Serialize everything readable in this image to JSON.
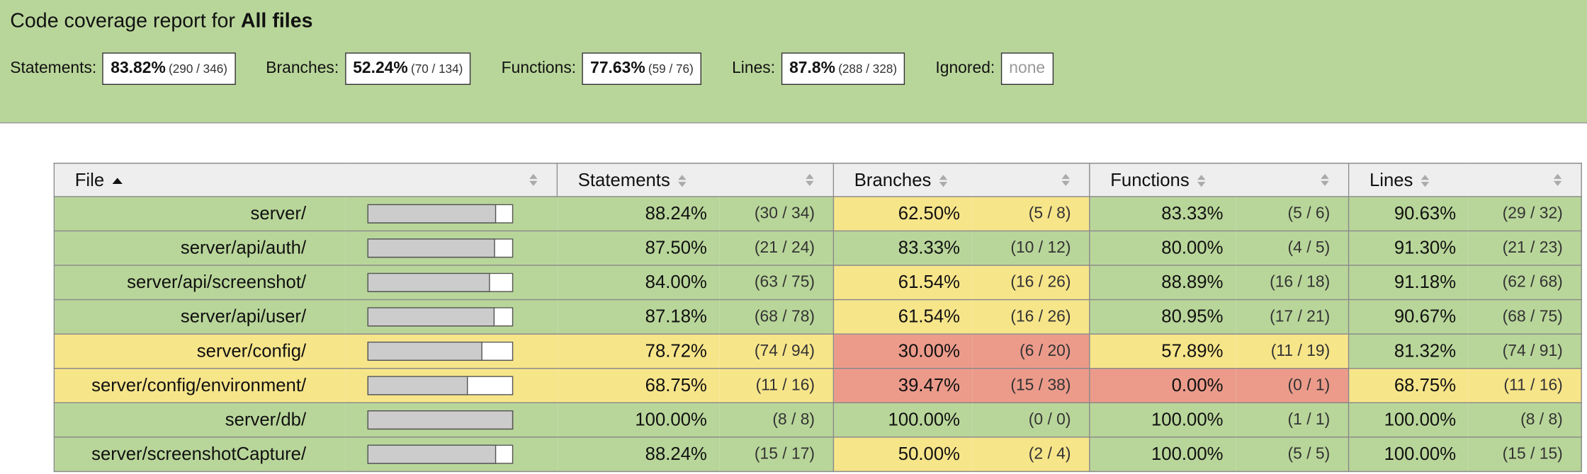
{
  "header": {
    "title_prefix": "Code coverage report for",
    "title_bold": "All files",
    "summary": [
      {
        "label": "Statements:",
        "pct": "83.82%",
        "frac": "(290 / 346)"
      },
      {
        "label": "Branches:",
        "pct": "52.24%",
        "frac": "(70 / 134)"
      },
      {
        "label": "Functions:",
        "pct": "77.63%",
        "frac": "(59 / 76)"
      },
      {
        "label": "Lines:",
        "pct": "87.8%",
        "frac": "(288 / 328)"
      }
    ],
    "ignored": {
      "label": "Ignored:",
      "value": "none"
    }
  },
  "table": {
    "columns": [
      "File",
      "Statements",
      "Branches",
      "Functions",
      "Lines"
    ],
    "rows": [
      {
        "file": "server/",
        "cells": [
          {
            "pct": "88.24%",
            "frac": "(30 / 34)"
          },
          {
            "pct": "62.50%",
            "frac": "(5 / 8)"
          },
          {
            "pct": "83.33%",
            "frac": "(5 / 6)"
          },
          {
            "pct": "90.63%",
            "frac": "(29 / 32)"
          }
        ]
      },
      {
        "file": "server/api/auth/",
        "cells": [
          {
            "pct": "87.50%",
            "frac": "(21 / 24)"
          },
          {
            "pct": "83.33%",
            "frac": "(10 / 12)"
          },
          {
            "pct": "80.00%",
            "frac": "(4 / 5)"
          },
          {
            "pct": "91.30%",
            "frac": "(21 / 23)"
          }
        ]
      },
      {
        "file": "server/api/screenshot/",
        "cells": [
          {
            "pct": "84.00%",
            "frac": "(63 / 75)"
          },
          {
            "pct": "61.54%",
            "frac": "(16 / 26)"
          },
          {
            "pct": "88.89%",
            "frac": "(16 / 18)"
          },
          {
            "pct": "91.18%",
            "frac": "(62 / 68)"
          }
        ]
      },
      {
        "file": "server/api/user/",
        "cells": [
          {
            "pct": "87.18%",
            "frac": "(68 / 78)"
          },
          {
            "pct": "61.54%",
            "frac": "(16 / 26)"
          },
          {
            "pct": "80.95%",
            "frac": "(17 / 21)"
          },
          {
            "pct": "90.67%",
            "frac": "(68 / 75)"
          }
        ]
      },
      {
        "file": "server/config/",
        "cells": [
          {
            "pct": "78.72%",
            "frac": "(74 / 94)"
          },
          {
            "pct": "30.00%",
            "frac": "(6 / 20)"
          },
          {
            "pct": "57.89%",
            "frac": "(11 / 19)"
          },
          {
            "pct": "81.32%",
            "frac": "(74 / 91)"
          }
        ]
      },
      {
        "file": "server/config/environment/",
        "cells": [
          {
            "pct": "68.75%",
            "frac": "(11 / 16)"
          },
          {
            "pct": "39.47%",
            "frac": "(15 / 38)"
          },
          {
            "pct": "0.00%",
            "frac": "(0 / 1)"
          },
          {
            "pct": "68.75%",
            "frac": "(11 / 16)"
          }
        ]
      },
      {
        "file": "server/db/",
        "cells": [
          {
            "pct": "100.00%",
            "frac": "(8 / 8)"
          },
          {
            "pct": "100.00%",
            "frac": "(0 / 0)"
          },
          {
            "pct": "100.00%",
            "frac": "(1 / 1)"
          },
          {
            "pct": "100.00%",
            "frac": "(8 / 8)"
          }
        ]
      },
      {
        "file": "server/screenshotCapture/",
        "cells": [
          {
            "pct": "88.24%",
            "frac": "(15 / 17)"
          },
          {
            "pct": "50.00%",
            "frac": "(2 / 4)"
          },
          {
            "pct": "100.00%",
            "frac": "(5 / 5)"
          },
          {
            "pct": "100.00%",
            "frac": "(15 / 15)"
          }
        ]
      }
    ]
  }
}
